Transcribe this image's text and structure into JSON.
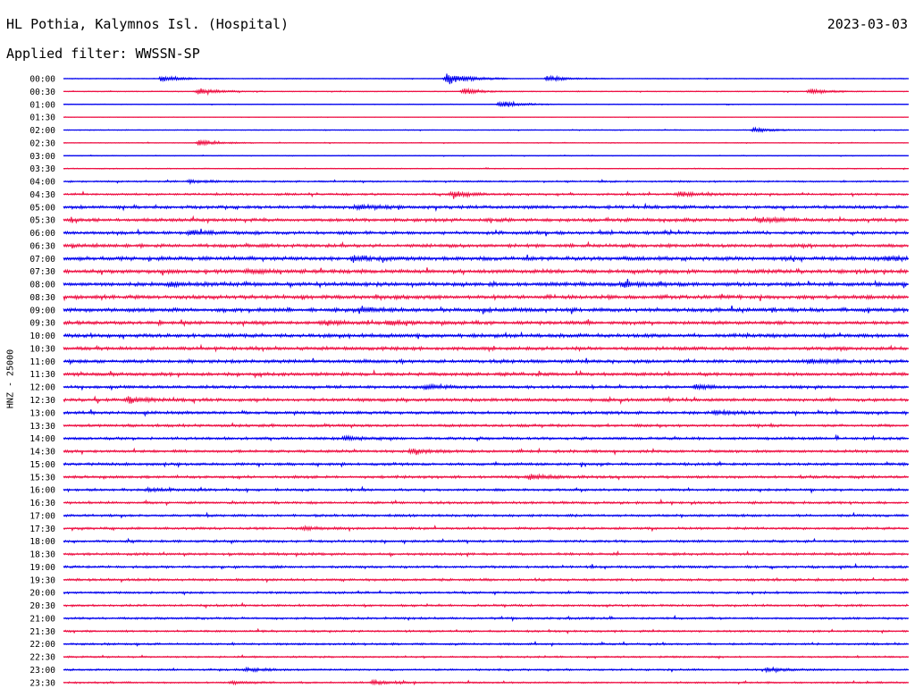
{
  "header": {
    "station": "HL Pothia, Kalymnos Isl. (Hospital)",
    "date": "2023-03-03",
    "filter": "Applied filter: WWSSN-SP"
  },
  "chart_data": {
    "type": "line",
    "chart_kind": "helicorder",
    "title": "HL Pothia, Kalymnos Isl. (Hospital)",
    "date": "2023-03-03",
    "filter": "Applied filter: WWSSN-SP",
    "ylabel": "HNZ - 25000",
    "colors": [
      "#0000ee",
      "#ee1144"
    ],
    "rows": [
      "00:00",
      "00:30",
      "01:00",
      "01:30",
      "02:00",
      "02:30",
      "03:00",
      "03:30",
      "04:00",
      "04:30",
      "05:00",
      "05:30",
      "06:00",
      "06:30",
      "07:00",
      "07:30",
      "08:00",
      "08:30",
      "09:00",
      "09:30",
      "10:00",
      "10:30",
      "11:00",
      "11:30",
      "12:00",
      "12:30",
      "13:00",
      "13:30",
      "14:00",
      "14:30",
      "15:00",
      "15:30",
      "16:00",
      "16:30",
      "17:00",
      "17:30",
      "18:00",
      "18:30",
      "19:00",
      "19:30",
      "20:00",
      "20:30",
      "21:00",
      "21:30",
      "22:00",
      "22:30",
      "23:00",
      "23:30"
    ],
    "noise_level": [
      0.3,
      0.35,
      0.3,
      0.2,
      0.3,
      0.3,
      0.3,
      0.35,
      0.7,
      0.9,
      1.3,
      1.4,
      1.3,
      1.4,
      1.6,
      1.6,
      1.6,
      1.6,
      1.6,
      1.4,
      1.5,
      1.4,
      1.4,
      1.4,
      1.2,
      1.3,
      1.2,
      1.1,
      1.1,
      1.1,
      1.1,
      1.1,
      1.0,
      1.0,
      1.0,
      1.0,
      1.0,
      1.0,
      1.0,
      1.0,
      0.9,
      0.9,
      0.9,
      0.8,
      0.8,
      0.7,
      0.7,
      0.7
    ],
    "events": [
      {
        "row": "00:00",
        "minute": 3.5,
        "amp": 3.5
      },
      {
        "row": "00:00",
        "minute": 13.6,
        "amp": 8
      },
      {
        "row": "00:00",
        "minute": 17.2,
        "amp": 3
      },
      {
        "row": "00:30",
        "minute": 4.8,
        "amp": 3.5
      },
      {
        "row": "00:30",
        "minute": 14.2,
        "amp": 3
      },
      {
        "row": "00:30",
        "minute": 26.5,
        "amp": 3
      },
      {
        "row": "01:00",
        "minute": 15.5,
        "amp": 4
      },
      {
        "row": "02:00",
        "minute": 24.5,
        "amp": 2.5
      },
      {
        "row": "02:30",
        "minute": 4.8,
        "amp": 3
      },
      {
        "row": "04:00",
        "minute": 4.5,
        "amp": 2
      },
      {
        "row": "04:30",
        "minute": 13.8,
        "amp": 3
      },
      {
        "row": "04:30",
        "minute": 21.8,
        "amp": 2.5
      },
      {
        "row": "05:00",
        "minute": 10.4,
        "amp": 2.5
      },
      {
        "row": "05:30",
        "minute": 24.7,
        "amp": 2.2
      },
      {
        "row": "06:00",
        "minute": 4.5,
        "amp": 2
      },
      {
        "row": "07:00",
        "minute": 10.3,
        "amp": 2.5
      },
      {
        "row": "07:00",
        "minute": 29.2,
        "amp": 2
      },
      {
        "row": "07:30",
        "minute": 6.5,
        "amp": 2
      },
      {
        "row": "08:00",
        "minute": 3.8,
        "amp": 2
      },
      {
        "row": "08:00",
        "minute": 19.9,
        "amp": 2.5
      },
      {
        "row": "09:00",
        "minute": 10.5,
        "amp": 2
      },
      {
        "row": "09:30",
        "minute": 9.2,
        "amp": 2
      },
      {
        "row": "09:30",
        "minute": 11.5,
        "amp": 2
      },
      {
        "row": "11:00",
        "minute": 26.5,
        "amp": 2
      },
      {
        "row": "12:00",
        "minute": 12.8,
        "amp": 2
      },
      {
        "row": "12:00",
        "minute": 22.4,
        "amp": 2
      },
      {
        "row": "12:30",
        "minute": 2.3,
        "amp": 2.5
      },
      {
        "row": "13:00",
        "minute": 23.1,
        "amp": 2
      },
      {
        "row": "14:00",
        "minute": 10.0,
        "amp": 2
      },
      {
        "row": "14:30",
        "minute": 12.3,
        "amp": 2
      },
      {
        "row": "15:30",
        "minute": 16.5,
        "amp": 2.5
      },
      {
        "row": "16:00",
        "minute": 3.0,
        "amp": 1.5
      },
      {
        "row": "17:30",
        "minute": 8.5,
        "amp": 1.5
      },
      {
        "row": "23:00",
        "minute": 6.5,
        "amp": 2
      },
      {
        "row": "23:00",
        "minute": 25.0,
        "amp": 2
      },
      {
        "row": "23:30",
        "minute": 6.0,
        "amp": 1.5
      },
      {
        "row": "23:30",
        "minute": 11.0,
        "amp": 2
      }
    ]
  }
}
